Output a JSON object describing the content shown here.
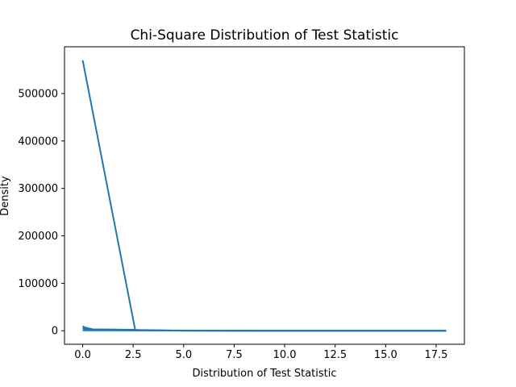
{
  "chart_data": {
    "type": "line",
    "title": "Chi-Square Distribution of Test Statistic",
    "xlabel": "Distribution of Test Statistic",
    "ylabel": "Density",
    "xlim": [
      -0.9,
      18.9
    ],
    "ylim": [
      -28500,
      598500
    ],
    "xticks": [
      0.0,
      2.5,
      5.0,
      7.5,
      10.0,
      12.5,
      15.0,
      17.5
    ],
    "xtick_labels": [
      "0.0",
      "2.5",
      "5.0",
      "7.5",
      "10.0",
      "12.5",
      "15.0",
      "17.5"
    ],
    "yticks": [
      0,
      100000,
      200000,
      300000,
      400000,
      500000
    ],
    "ytick_labels": [
      "0",
      "100000",
      "200000",
      "300000",
      "400000",
      "500000"
    ],
    "grid": false,
    "color": "#1f77b4",
    "series": [
      {
        "points": [
          [
            0.0,
            10000
          ],
          [
            0.2,
            3000
          ],
          [
            0.5,
            2500
          ],
          [
            1.0,
            2300
          ],
          [
            1.5,
            2200
          ],
          [
            2.0,
            2000
          ],
          [
            2.5,
            1800
          ],
          [
            3.0,
            1500
          ],
          [
            3.5,
            1200
          ],
          [
            4.0,
            800
          ],
          [
            4.5,
            400
          ],
          [
            5.0,
            200
          ],
          [
            6.0,
            100
          ],
          [
            8.0,
            50
          ],
          [
            10.0,
            20
          ],
          [
            12.0,
            10
          ],
          [
            14.0,
            5
          ],
          [
            16.0,
            2
          ],
          [
            18.0,
            0
          ]
        ]
      },
      {
        "points": [
          [
            0.0,
            5000
          ],
          [
            0.3,
            1500
          ],
          [
            0.6,
            1400
          ],
          [
            1.0,
            1300
          ],
          [
            2.0,
            1100
          ],
          [
            3.0,
            900
          ],
          [
            3.5,
            700
          ],
          [
            4.0,
            400
          ],
          [
            5.0,
            100
          ],
          [
            7.0,
            30
          ],
          [
            10.0,
            10
          ],
          [
            14.0,
            3
          ],
          [
            18.0,
            0
          ]
        ]
      },
      {
        "points": [
          [
            0.0,
            570000
          ],
          [
            2.6,
            2000
          ],
          [
            0.5,
            3000
          ],
          [
            0.0,
            8000
          ]
        ]
      },
      {
        "points": [
          [
            0.0,
            800
          ],
          [
            4.0,
            500
          ],
          [
            8.0,
            100
          ],
          [
            12.0,
            20
          ],
          [
            18.0,
            0
          ]
        ]
      }
    ]
  }
}
